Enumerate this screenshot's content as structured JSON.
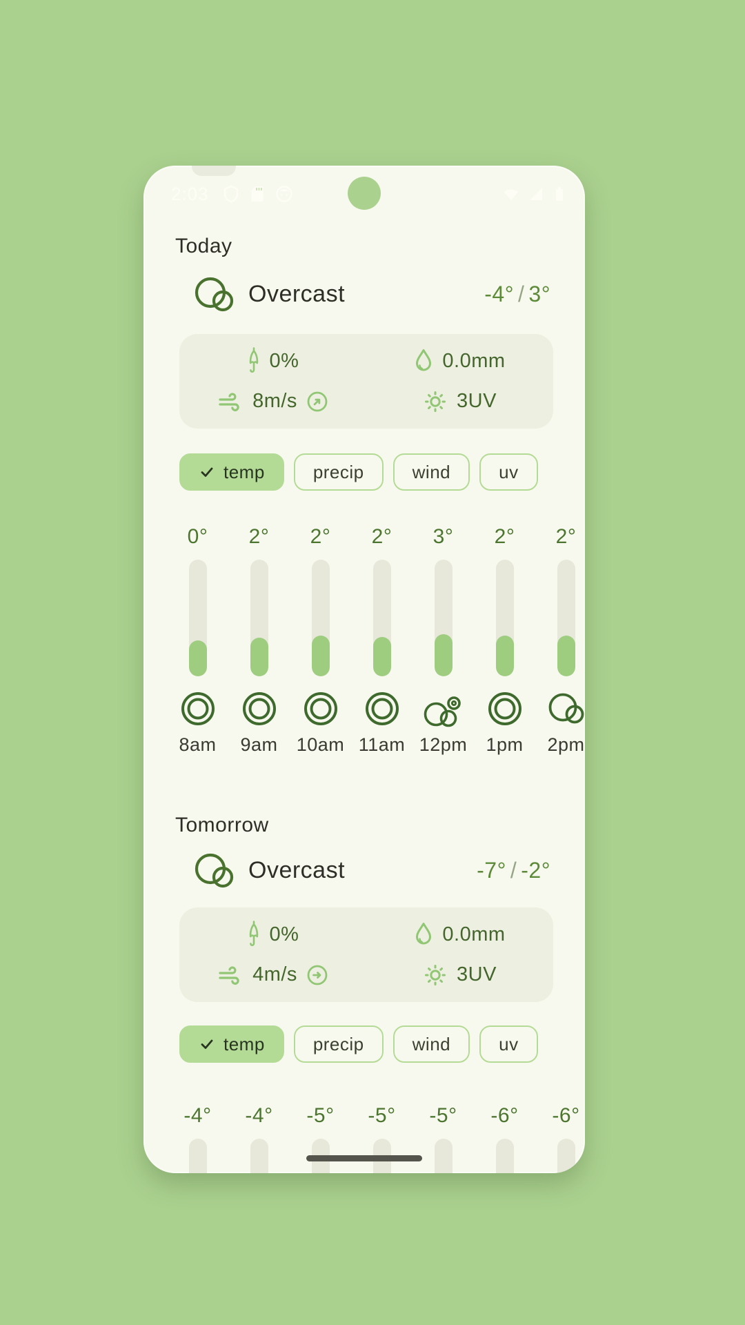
{
  "theme": {
    "background_green": "#abd18f",
    "screen_cream": "#f8f9ee",
    "card_gray_green": "#edefe0",
    "chip_green": "#b4db95",
    "icon_light_green": "#90c674",
    "icon_dark_green": "#49722f",
    "bar_track": "#e7e8da",
    "bar_fill_green": "#9ecd80",
    "text_dark": "#2e2e27",
    "text_green": "#4c7530"
  },
  "status_bar": {
    "time": "2:03",
    "left_icons": [
      "shield-icon",
      "sd-card-icon",
      "face-icon"
    ],
    "right_icons": [
      "wifi-icon",
      "signal-icon",
      "battery-icon"
    ]
  },
  "today": {
    "title": "Today",
    "condition": "Overcast",
    "condition_icon": "overcast-icon",
    "temp_low": "-4°",
    "separator": "/",
    "temp_high": "3°",
    "stats": {
      "precip_chance": "0%",
      "precip_amount": "0.0mm",
      "wind_speed": "8m/s",
      "wind_dir_deg": -45,
      "uv": "3UV"
    },
    "chips": [
      {
        "label": "temp",
        "selected": true
      },
      {
        "label": "precip",
        "selected": false
      },
      {
        "label": "wind",
        "selected": false
      },
      {
        "label": "uv",
        "selected": false
      }
    ],
    "hours": [
      {
        "time": "8am",
        "temp": "0°",
        "icon": "cloudy-rings-icon",
        "fill_pct": 31
      },
      {
        "time": "9am",
        "temp": "2°",
        "icon": "cloudy-rings-icon",
        "fill_pct": 33
      },
      {
        "time": "10am",
        "temp": "2°",
        "icon": "cloudy-rings-icon",
        "fill_pct": 35
      },
      {
        "time": "11am",
        "temp": "2°",
        "icon": "cloudy-rings-icon",
        "fill_pct": 34
      },
      {
        "time": "12pm",
        "temp": "3°",
        "icon": "partly-cloudy-icon",
        "fill_pct": 36
      },
      {
        "time": "1pm",
        "temp": "2°",
        "icon": "cloudy-rings-icon",
        "fill_pct": 35
      },
      {
        "time": "2pm",
        "temp": "2°",
        "icon": "overcast-icon",
        "fill_pct": 35
      }
    ]
  },
  "tomorrow": {
    "title": "Tomorrow",
    "condition": "Overcast",
    "condition_icon": "overcast-icon",
    "temp_low": "-7°",
    "separator": "/",
    "temp_high": "-2°",
    "stats": {
      "precip_chance": "0%",
      "precip_amount": "0.0mm",
      "wind_speed": "4m/s",
      "wind_dir_deg": 0,
      "uv": "3UV"
    },
    "chips": [
      {
        "label": "temp",
        "selected": true
      },
      {
        "label": "precip",
        "selected": false
      },
      {
        "label": "wind",
        "selected": false
      },
      {
        "label": "uv",
        "selected": false
      }
    ],
    "hours": [
      {
        "temp": "-4°"
      },
      {
        "temp": "-4°"
      },
      {
        "temp": "-5°"
      },
      {
        "temp": "-5°"
      },
      {
        "temp": "-5°"
      },
      {
        "temp": "-6°"
      },
      {
        "temp": "-6°"
      }
    ]
  }
}
